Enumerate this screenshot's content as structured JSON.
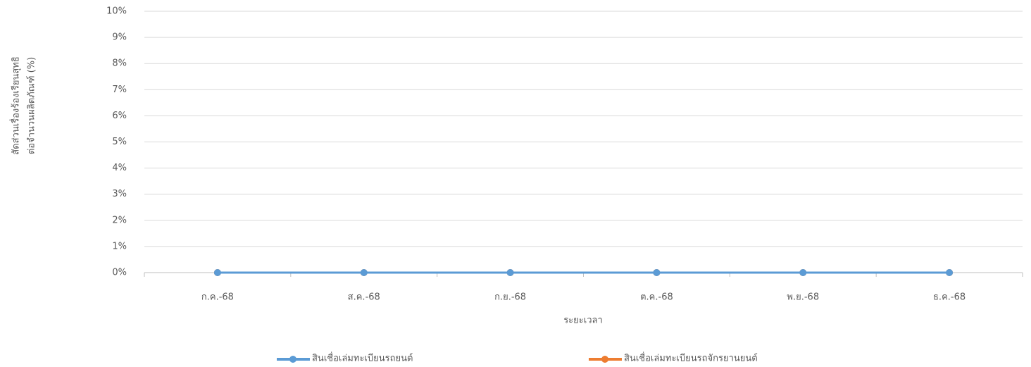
{
  "chart_data": {
    "type": "line",
    "y_axis_title": [
      "สัดส่วนเรื่องร้องเรียนสุทธิ",
      "ต่อจำนวนผลิตภัณฑ์ (%)"
    ],
    "x_axis_title": "ระยะเวลา",
    "categories": [
      "ก.ค.-68",
      "ส.ค.-68",
      "ก.ย.-68",
      "ต.ค.-68",
      "พ.ย.-68",
      "ธ.ค.-68"
    ],
    "series": [
      {
        "name": "สินเชื่อเล่มทะเบียนรถยนต์",
        "color": "#5b9bd5",
        "values": [
          0,
          0,
          0,
          0,
          0,
          0
        ]
      },
      {
        "name": "สินเชื่อเล่มทะเบียนรถจักรยานยนต์",
        "color": "#ed7d31",
        "values": [
          0,
          0,
          0,
          0,
          0,
          0
        ]
      }
    ],
    "ylim": [
      0,
      10
    ],
    "yticks": [
      {
        "value": 0,
        "label": "0%"
      },
      {
        "value": 1,
        "label": "1%"
      },
      {
        "value": 2,
        "label": "2%"
      },
      {
        "value": 3,
        "label": "3%"
      },
      {
        "value": 4,
        "label": "4%"
      },
      {
        "value": 5,
        "label": "5%"
      },
      {
        "value": 6,
        "label": "6%"
      },
      {
        "value": 7,
        "label": "7%"
      },
      {
        "value": 8,
        "label": "8%"
      },
      {
        "value": 9,
        "label": "9%"
      },
      {
        "value": 10,
        "label": "10%"
      }
    ],
    "grid": true
  }
}
